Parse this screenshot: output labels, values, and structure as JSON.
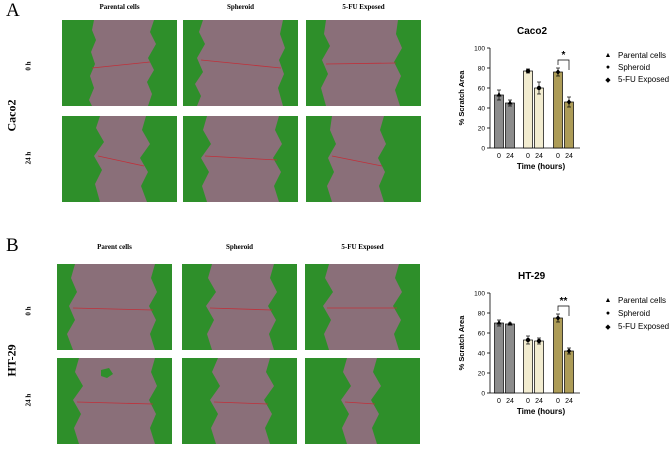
{
  "panels": [
    {
      "letter": "A",
      "cell_line": "Caco2",
      "col_headers": [
        "Parental cells",
        "Spheroid",
        "5-FU Exposed"
      ],
      "row_labels": [
        "0 h",
        "24 h"
      ]
    },
    {
      "letter": "B",
      "cell_line": "HT-29",
      "col_headers": [
        "Parent cells",
        "Spheroid",
        "5-FU Exposed"
      ],
      "row_labels": [
        "0 h",
        "24 h"
      ]
    }
  ],
  "legend": [
    {
      "symbol": "▲",
      "label": "Parental cells"
    },
    {
      "symbol": "●",
      "label": "Spheroid"
    },
    {
      "symbol": "◆",
      "label": "5-FU Exposed"
    }
  ],
  "colors": {
    "parental": "#8c8c8c",
    "spheroid": "#f2ecd0",
    "exposed": "#ad9c57",
    "cells_green": "#2e8f2a",
    "scratch": "#8a6f79"
  },
  "chart_data": [
    {
      "type": "bar",
      "title": "Caco2",
      "xlabel": "Time (hours)",
      "ylabel": "% Scratch Area",
      "ylim": [
        0,
        100
      ],
      "yticks": [
        0,
        20,
        40,
        60,
        80,
        100
      ],
      "categories": [
        "0",
        "24",
        "0",
        "24",
        "0",
        "24"
      ],
      "groups": [
        "Parental cells",
        "Spheroid",
        "5-FU Exposed"
      ],
      "values": [
        53,
        45,
        77,
        60,
        76,
        46
      ],
      "errors": [
        5,
        3,
        2,
        6,
        4,
        5
      ],
      "significance": {
        "label": "*",
        "between": [
          4,
          5
        ]
      }
    },
    {
      "type": "bar",
      "title": "HT-29",
      "xlabel": "Time (hours)",
      "ylabel": "% Scratch Area",
      "ylim": [
        0,
        100
      ],
      "yticks": [
        0,
        20,
        40,
        60,
        80,
        100
      ],
      "categories": [
        "0",
        "24",
        "0",
        "24",
        "0",
        "24"
      ],
      "groups": [
        "Parental cells",
        "Spheroid",
        "5-FU Exposed"
      ],
      "values": [
        70,
        69,
        53,
        52,
        75,
        42
      ],
      "errors": [
        3,
        1,
        4,
        3,
        4,
        3
      ],
      "significance": {
        "label": "**",
        "between": [
          4,
          5
        ]
      }
    }
  ]
}
